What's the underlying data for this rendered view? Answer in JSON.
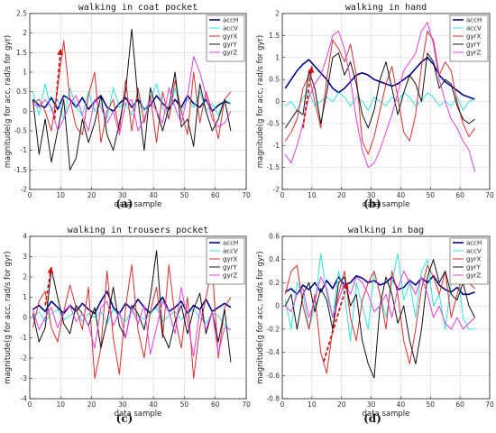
{
  "chart_data": [
    {
      "type": "line",
      "title": "walking in coat pocket",
      "xlabel": "data sample",
      "ylabel": "magnitude(g for acc, rad/s for gyr)",
      "caption": "(a)",
      "xlim": [
        0,
        70
      ],
      "ylim": [
        -2,
        2.5
      ],
      "xticks": [
        0,
        10,
        20,
        30,
        40,
        50,
        60,
        70
      ],
      "yticks": [
        -2,
        -1.5,
        -1,
        -0.5,
        0,
        0.5,
        1,
        1.5,
        2,
        2.5
      ],
      "ytick_labels": [
        "-2",
        "-1.5",
        "-1",
        "-0.5",
        "0",
        "0.5",
        "1",
        "1.5",
        "2",
        "2.5"
      ],
      "grid": true,
      "legend_position": "top-right",
      "arrow": {
        "from": [
          8,
          -0.2
        ],
        "to": [
          10,
          1.6
        ]
      },
      "x": [
        1,
        3,
        5,
        7,
        9,
        11,
        13,
        15,
        17,
        19,
        21,
        23,
        25,
        27,
        29,
        31,
        33,
        35,
        37,
        39,
        41,
        43,
        45,
        47,
        49,
        51,
        53,
        55,
        57,
        59,
        61,
        63,
        65
      ],
      "series": [
        {
          "name": "accH",
          "color": "#00008b",
          "width": 1.6,
          "values": [
            0.3,
            0.15,
            0.1,
            0.35,
            0.05,
            0.4,
            0.3,
            0.1,
            0.35,
            0.05,
            0.25,
            0.4,
            0.1,
            0.0,
            0.2,
            0.35,
            0.1,
            0.3,
            0.05,
            0.15,
            0.4,
            0.2,
            0.05,
            0.3,
            0.1,
            0.4,
            0.2,
            0.1,
            0.3,
            0.0,
            0.15,
            0.25,
            0.2
          ]
        },
        {
          "name": "accV",
          "color": "#33e0e0",
          "width": 1.0,
          "values": [
            0.5,
            -0.1,
            0.7,
            0.0,
            0.3,
            -0.2,
            0.6,
            0.1,
            -0.1,
            0.5,
            0.0,
            0.2,
            -0.2,
            0.6,
            0.1,
            0.2,
            -0.1,
            0.5,
            0.0,
            0.3,
            0.7,
            0.1,
            -0.2,
            0.6,
            0.0,
            0.3,
            0.1,
            0.5,
            0.0,
            0.2,
            -0.1,
            0.3,
            0.2
          ]
        },
        {
          "name": "gyrX",
          "color": "#d83030",
          "width": 1.0,
          "values": [
            0.2,
            0.3,
            0.0,
            -0.5,
            0.6,
            1.8,
            0.3,
            -0.4,
            -0.6,
            0.4,
            1.0,
            -0.8,
            0.0,
            0.3,
            -0.5,
            0.8,
            -0.5,
            0.6,
            -0.3,
            0.4,
            -0.8,
            0.5,
            -0.2,
            0.8,
            0.0,
            -0.6,
            1.0,
            -0.3,
            0.5,
            0.0,
            -0.7,
            0.3,
            0.5
          ]
        },
        {
          "name": "gyrY",
          "color": "#111111",
          "width": 1.0,
          "values": [
            0.3,
            -1.1,
            -0.2,
            -1.3,
            -0.5,
            0.3,
            -1.5,
            -1.2,
            -0.2,
            -0.8,
            -0.3,
            0.4,
            -0.6,
            -1.0,
            -0.3,
            0.5,
            2.1,
            0.3,
            -1.0,
            0.6,
            0.0,
            -0.5,
            0.1,
            1.0,
            -0.4,
            -0.2,
            -0.9,
            0.7,
            0.0,
            -0.5,
            -0.2,
            0.3,
            -0.5
          ]
        },
        {
          "name": "gyrZ",
          "color": "#e040e0",
          "width": 1.0,
          "values": [
            0.2,
            0.1,
            0.3,
            0.1,
            -0.5,
            -0.2,
            0.2,
            0.4,
            -0.1,
            -0.5,
            0.3,
            0.1,
            -0.3,
            0.0,
            -0.6,
            0.2,
            0.3,
            -0.5,
            -0.2,
            0.3,
            0.0,
            -0.3,
            0.6,
            0.1,
            -0.3,
            0.4,
            1.4,
            1.0,
            0.4,
            -0.2,
            -0.4,
            -0.3,
            0.0
          ]
        }
      ]
    },
    {
      "type": "line",
      "title": "walking in hand",
      "xlabel": "data sample",
      "ylabel": "magnitude(g for acc, rad/s for gyr)",
      "caption": "(b)",
      "xlim": [
        0,
        70
      ],
      "ylim": [
        -2,
        2
      ],
      "xticks": [
        0,
        10,
        20,
        30,
        40,
        50,
        60,
        70
      ],
      "yticks": [
        -2,
        -1.5,
        -1,
        -0.5,
        0,
        0.5,
        1,
        1.5,
        2
      ],
      "ytick_labels": [
        "-2",
        "-1.5",
        "-1",
        "-0.5",
        "0",
        "0.5",
        "1",
        "1.5",
        "2"
      ],
      "grid": true,
      "legend_position": "top-right",
      "arrow": {
        "from": [
          7,
          -0.6
        ],
        "to": [
          10,
          0.8
        ]
      },
      "x": [
        1,
        3,
        5,
        7,
        9,
        11,
        13,
        15,
        17,
        19,
        21,
        23,
        25,
        27,
        29,
        31,
        33,
        35,
        37,
        39,
        41,
        43,
        45,
        47,
        49,
        51,
        53,
        55,
        57,
        59,
        61,
        63,
        65
      ],
      "series": [
        {
          "name": "accH",
          "color": "#00008b",
          "width": 1.6,
          "values": [
            0.3,
            0.5,
            0.7,
            0.85,
            0.95,
            0.8,
            0.65,
            0.5,
            0.3,
            0.2,
            0.3,
            0.45,
            0.6,
            0.65,
            0.6,
            0.5,
            0.45,
            0.4,
            0.35,
            0.4,
            0.5,
            0.6,
            0.75,
            0.9,
            1.0,
            0.85,
            0.6,
            0.45,
            0.35,
            0.25,
            0.15,
            0.1,
            0.05
          ]
        },
        {
          "name": "accV",
          "color": "#33e0e0",
          "width": 1.0,
          "values": [
            -0.1,
            0.0,
            -0.2,
            0.1,
            0.2,
            -0.1,
            0.0,
            0.1,
            0.0,
            0.2,
            0.1,
            -0.1,
            0.1,
            0.0,
            -0.2,
            0.1,
            0.0,
            -0.1,
            0.1,
            0.0,
            0.2,
            0.1,
            -0.1,
            0.0,
            0.2,
            0.1,
            -0.1,
            0.0,
            -0.1,
            0.1,
            -0.2,
            0.0,
            0.05
          ]
        },
        {
          "name": "gyrX",
          "color": "#d83030",
          "width": 1.0,
          "values": [
            -0.9,
            -0.7,
            -0.4,
            0.3,
            0.6,
            0.0,
            -0.6,
            0.5,
            1.4,
            1.2,
            0.9,
            1.3,
            0.6,
            -0.9,
            -1.2,
            -0.8,
            -0.2,
            0.4,
            0.8,
            0.1,
            -0.7,
            -0.9,
            -0.3,
            0.8,
            1.6,
            1.4,
            0.6,
            0.9,
            0.7,
            0.0,
            -0.5,
            -0.8,
            -0.6
          ]
        },
        {
          "name": "gyrY",
          "color": "#111111",
          "width": 1.0,
          "values": [
            -0.6,
            -0.4,
            -0.2,
            -0.3,
            0.7,
            0.3,
            -0.5,
            0.2,
            1.0,
            1.1,
            0.6,
            0.9,
            0.4,
            -0.3,
            -0.6,
            -0.2,
            0.5,
            0.9,
            0.3,
            -0.3,
            0.2,
            0.6,
            0.4,
            0.0,
            1.1,
            0.9,
            0.3,
            0.5,
            0.4,
            -0.1,
            -0.4,
            -0.5,
            -0.4
          ]
        },
        {
          "name": "gyrZ",
          "color": "#e040e0",
          "width": 1.0,
          "values": [
            -1.2,
            -1.4,
            -1.0,
            -0.5,
            0.1,
            0.4,
            0.6,
            1.0,
            1.5,
            1.6,
            1.2,
            0.5,
            -0.4,
            -1.1,
            -1.5,
            -1.4,
            -1.1,
            -0.7,
            -0.3,
            0.2,
            0.7,
            0.9,
            1.1,
            1.6,
            1.8,
            1.3,
            0.5,
            0.0,
            -0.4,
            -0.6,
            -0.9,
            -1.1,
            -1.6
          ]
        }
      ]
    },
    {
      "type": "line",
      "title": "walking in trousers pocket",
      "xlabel": "data sample",
      "ylabel": "magnitude(g for acc, rad/s for gyr)",
      "caption": "(c)",
      "xlim": [
        0,
        70
      ],
      "ylim": [
        -4,
        4
      ],
      "xticks": [
        0,
        10,
        20,
        30,
        40,
        50,
        60,
        70
      ],
      "yticks": [
        -4,
        -3,
        -2,
        -1,
        0,
        1,
        2,
        3,
        4
      ],
      "ytick_labels": [
        "-4",
        "-3",
        "-2",
        "-1",
        "0",
        "1",
        "2",
        "3",
        "4"
      ],
      "grid": true,
      "legend_position": "top-right",
      "arrow": {
        "from": [
          5,
          0.6
        ],
        "to": [
          7,
          2.5
        ]
      },
      "x": [
        1,
        3,
        5,
        7,
        9,
        11,
        13,
        15,
        17,
        19,
        21,
        23,
        25,
        27,
        29,
        31,
        33,
        35,
        37,
        39,
        41,
        43,
        45,
        47,
        49,
        51,
        53,
        55,
        57,
        59,
        61,
        63,
        65
      ],
      "series": [
        {
          "name": "accH",
          "color": "#00008b",
          "width": 1.6,
          "values": [
            0.4,
            0.6,
            0.3,
            0.8,
            0.5,
            0.2,
            0.6,
            0.3,
            0.7,
            0.4,
            0.2,
            0.8,
            1.3,
            0.5,
            0.2,
            0.7,
            0.4,
            0.9,
            0.5,
            0.2,
            0.6,
            1.0,
            0.3,
            0.5,
            0.8,
            0.2,
            0.6,
            0.4,
            0.9,
            0.3,
            0.5,
            0.7,
            0.5
          ]
        },
        {
          "name": "accV",
          "color": "#33e0e0",
          "width": 1.0,
          "values": [
            0.0,
            0.3,
            -0.2,
            0.2,
            0.4,
            -0.1,
            0.1,
            0.3,
            -0.2,
            0.2,
            0.0,
            0.3,
            -0.3,
            0.4,
            0.1,
            -0.2,
            0.3,
            0.1,
            -0.1,
            0.2,
            0.5,
            -0.2,
            0.1,
            0.3,
            -0.1,
            0.2,
            0.4,
            0.0,
            -0.3,
            0.2,
            0.1,
            -0.4,
            -0.6
          ]
        },
        {
          "name": "gyrX",
          "color": "#d83030",
          "width": 1.0,
          "values": [
            -0.5,
            0.8,
            1.3,
            -0.5,
            -1.2,
            0.3,
            1.6,
            0.5,
            -0.6,
            1.5,
            -3.0,
            -1.5,
            2.3,
            -1.0,
            -2.8,
            0.5,
            2.6,
            -0.6,
            -2.0,
            0.3,
            1.5,
            -1.0,
            2.6,
            0.0,
            -1.5,
            1.0,
            -3.0,
            -0.5,
            1.0,
            2.5,
            -2.0,
            0.5,
            1.0
          ]
        },
        {
          "name": "gyrY",
          "color": "#111111",
          "width": 1.0,
          "values": [
            0.2,
            -1.2,
            -0.5,
            2.4,
            1.0,
            -0.3,
            -0.8,
            0.6,
            0.2,
            -0.4,
            0.5,
            -1.5,
            -0.2,
            1.5,
            -0.4,
            -1.0,
            0.6,
            0.2,
            -0.6,
            1.0,
            3.3,
            -0.8,
            -1.5,
            -0.2,
            0.6,
            -0.8,
            0.4,
            1.2,
            -0.8,
            0.3,
            -1.2,
            0.4,
            -2.2
          ]
        },
        {
          "name": "gyrZ",
          "color": "#e040e0",
          "width": 1.0,
          "values": [
            0.4,
            -0.6,
            0.0,
            0.5,
            -0.5,
            0.3,
            0.6,
            -0.2,
            0.2,
            -0.4,
            -1.5,
            0.5,
            0.8,
            -0.4,
            0.3,
            -1.0,
            0.5,
            -0.3,
            0.6,
            -1.8,
            -0.5,
            0.8,
            0.3,
            -0.8,
            1.5,
            -0.2,
            -1.9,
            0.4,
            -0.6,
            0.3,
            -1.8,
            -0.5,
            -0.6
          ]
        }
      ]
    },
    {
      "type": "line",
      "title": "walking in bag",
      "xlabel": "data sample",
      "ylabel": "magnitude(g for acc, rad/s for gyr)",
      "caption": "(d)",
      "xlim": [
        0,
        70
      ],
      "ylim": [
        -0.8,
        0.6
      ],
      "xticks": [
        0,
        10,
        20,
        30,
        40,
        50,
        60,
        70
      ],
      "yticks": [
        -0.8,
        -0.6,
        -0.4,
        -0.2,
        0,
        0.2,
        0.4,
        0.6
      ],
      "ytick_labels": [
        "-0.8",
        "-0.6",
        "-0.4",
        "-0.2",
        "0",
        "0.2",
        "0.4",
        "0.6"
      ],
      "grid": true,
      "legend_position": "top-right",
      "arrow": {
        "from": [
          14,
          -0.48
        ],
        "to": [
          22,
          0.2
        ]
      },
      "x": [
        1,
        3,
        5,
        7,
        9,
        11,
        13,
        15,
        17,
        19,
        21,
        23,
        25,
        27,
        29,
        31,
        33,
        35,
        37,
        39,
        41,
        43,
        45,
        47,
        49,
        51,
        53,
        55,
        57,
        59,
        61,
        63,
        65
      ],
      "series": [
        {
          "name": "accH",
          "color": "#00008b",
          "width": 1.6,
          "values": [
            0.12,
            0.15,
            0.1,
            0.18,
            0.14,
            0.2,
            0.12,
            0.22,
            0.15,
            0.25,
            0.18,
            0.2,
            0.26,
            0.24,
            0.2,
            0.22,
            0.18,
            0.2,
            0.25,
            0.14,
            0.16,
            0.22,
            0.18,
            0.24,
            0.2,
            0.26,
            0.18,
            0.14,
            0.12,
            0.16,
            0.1,
            0.1,
            0.12
          ]
        },
        {
          "name": "accV",
          "color": "#33e0e0",
          "width": 1.0,
          "values": [
            0.05,
            -0.2,
            0.2,
            0.1,
            -0.2,
            0.0,
            0.45,
            0.1,
            -0.1,
            0.3,
            0.1,
            -0.3,
            0.2,
            0.0,
            -0.2,
            0.3,
            0.1,
            -0.1,
            0.2,
            0.45,
            0.05,
            0.2,
            -0.1,
            0.3,
            0.4,
            0.0,
            0.1,
            -0.2,
            0.2,
            0.35,
            -0.1,
            -0.2,
            -0.2
          ]
        },
        {
          "name": "gyrX",
          "color": "#d83030",
          "width": 1.0,
          "values": [
            0.1,
            0.3,
            0.35,
            0.0,
            -0.2,
            0.1,
            -0.4,
            -0.58,
            -0.2,
            0.1,
            0.3,
            -0.1,
            -0.3,
            0.05,
            0.2,
            0.3,
            0.1,
            -0.2,
            0.3,
            0.1,
            -0.3,
            -0.5,
            -0.2,
            0.15,
            0.35,
            0.25,
            0.1,
            0.3,
            -0.1,
            0.1,
            0.28,
            0.2,
            0.15
          ]
        },
        {
          "name": "gyrY",
          "color": "#111111",
          "width": 1.0,
          "values": [
            0.0,
            0.1,
            -0.2,
            0.1,
            0.2,
            -0.05,
            0.15,
            0.05,
            -0.2,
            0.2,
            0.25,
            0.0,
            0.1,
            -0.3,
            -0.5,
            -0.62,
            0.0,
            0.25,
            0.1,
            -0.15,
            0.0,
            -0.3,
            -0.5,
            -0.2,
            0.25,
            0.4,
            0.2,
            0.3,
            0.1,
            0.05,
            0.2,
            0.0,
            -0.1
          ]
        },
        {
          "name": "gyrZ",
          "color": "#e040e0",
          "width": 1.0,
          "values": [
            0.0,
            -0.05,
            0.1,
            0.15,
            -0.1,
            0.05,
            0.25,
            0.15,
            -0.1,
            0.05,
            0.2,
            0.1,
            0.25,
            0.2,
            0.1,
            -0.05,
            0.0,
            0.1,
            -0.1,
            0.15,
            0.3,
            0.2,
            0.1,
            0.25,
            0.1,
            -0.1,
            0.0,
            -0.15,
            -0.2,
            -0.1,
            -0.2,
            -0.15,
            -0.1
          ]
        }
      ]
    }
  ]
}
